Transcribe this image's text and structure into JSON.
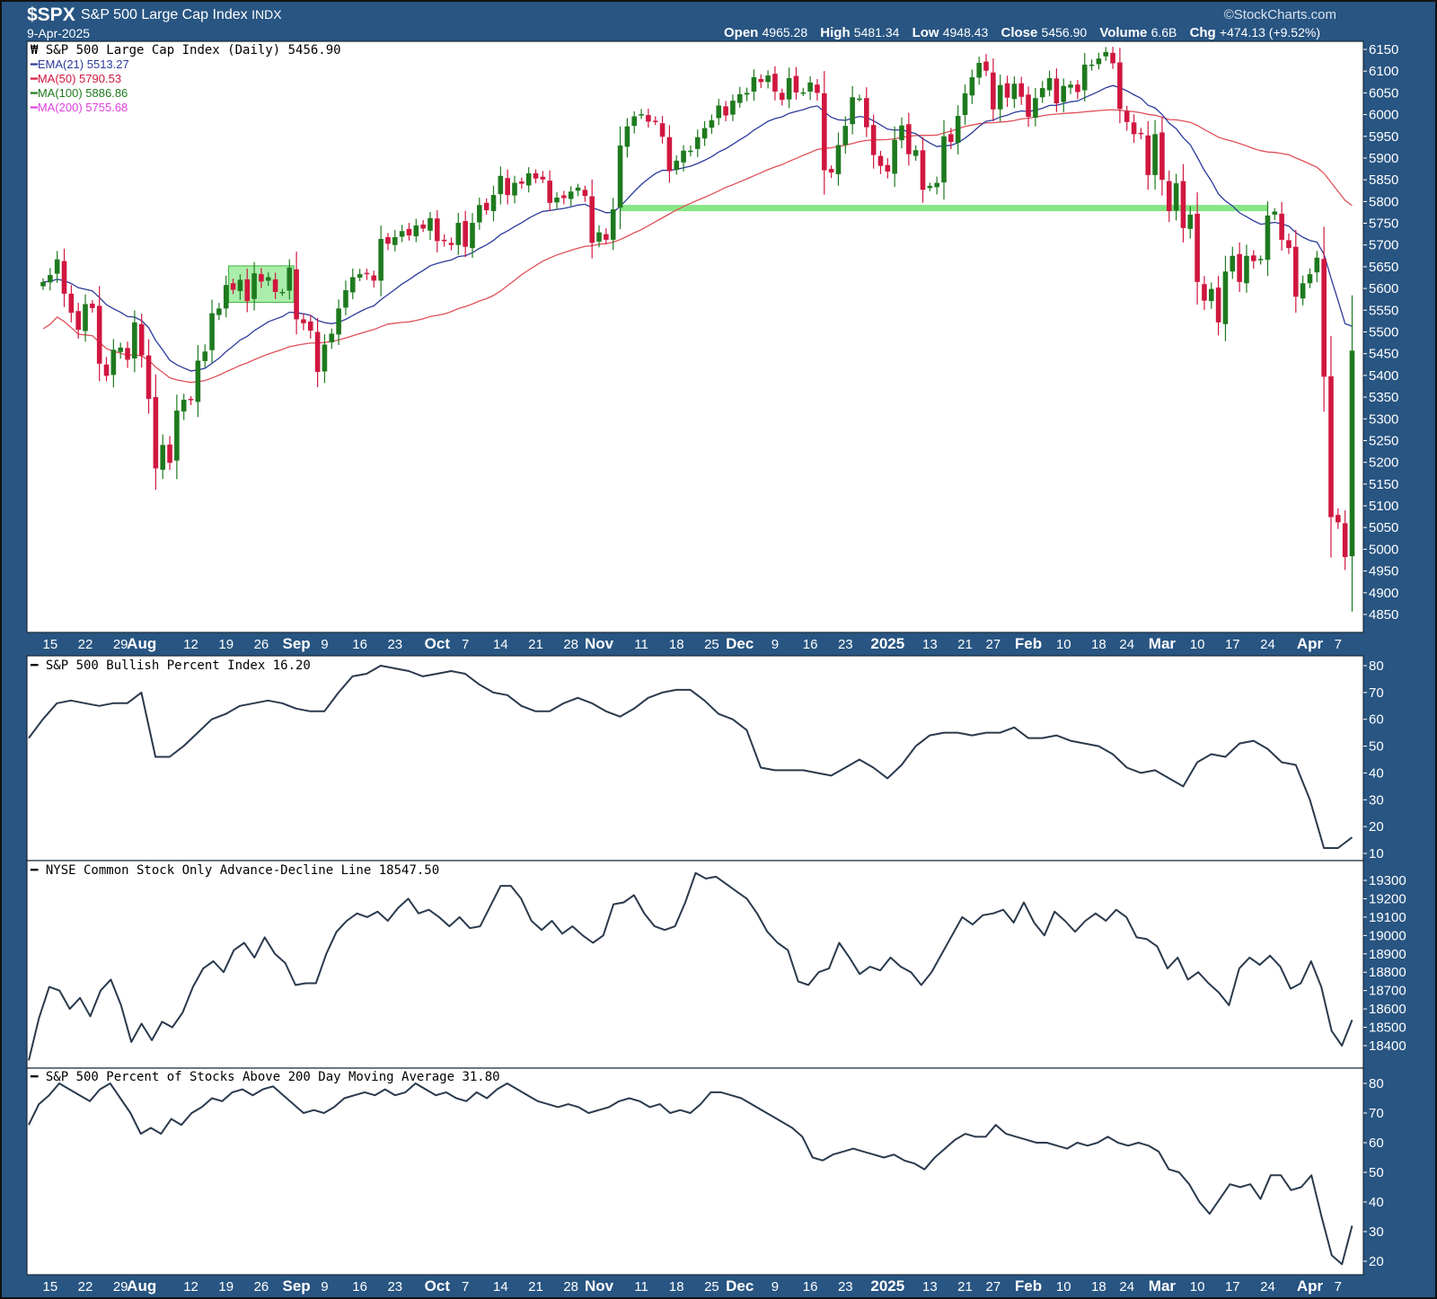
{
  "header": {
    "symbol": "$SPX",
    "name": "S&P 500 Large Cap Index",
    "exchange": "INDX",
    "date": "9-Apr-2025",
    "copyright": "©StockCharts.com",
    "open_label": "Open",
    "open": "4965.28",
    "high_label": "High",
    "high": "5481.34",
    "low_label": "Low",
    "low": "4948.43",
    "close_label": "Close",
    "close": "5456.90",
    "volume_label": "Volume",
    "volume": "6.6B",
    "chg_label": "Chg",
    "chg": "+474.13 (+9.52%)"
  },
  "legend": {
    "price": "S&P 500 Large Cap Index (Daily) 5456.90",
    "ema21": "EMA(21) 5513.27",
    "ma50": "MA(50) 5790.53",
    "ma100": "MA(100) 5886.86",
    "ma200": "MA(200) 5755.68"
  },
  "colors": {
    "up": "#1e7a1e",
    "down": "#d0173f",
    "ema21": "#2b3a9a",
    "ma50": "#e0505a",
    "ma100": "#1e7a1e",
    "ma200": "#e040e0",
    "highlight": "#66e066",
    "line": "#2a3a4c",
    "background": "#285582"
  },
  "chart_data": [
    {
      "type": "candlestick",
      "title": "S&P 500 Large Cap Index (Daily)",
      "ylim": [
        4820,
        6175
      ],
      "yticks": [
        6150,
        6100,
        6050,
        6000,
        5950,
        5900,
        5850,
        5800,
        5750,
        5700,
        5650,
        5600,
        5550,
        5500,
        5450,
        5400,
        5350,
        5300,
        5250,
        5200,
        5150,
        5100,
        5050,
        5000,
        4950,
        4900,
        4850
      ],
      "closes": [
        5615,
        5631,
        5667,
        5588,
        5544,
        5505,
        5564,
        5555,
        5427,
        5399,
        5459,
        5464,
        5436,
        5522,
        5446,
        5346,
        5186,
        5240,
        5199,
        5319,
        5344,
        5344,
        5434,
        5455,
        5543,
        5554,
        5608,
        5597,
        5620,
        5571,
        5635,
        5616,
        5626,
        5592,
        5592,
        5648,
        5529,
        5520,
        5503,
        5408,
        5471,
        5496,
        5554,
        5596,
        5626,
        5633,
        5634,
        5618,
        5714,
        5703,
        5718,
        5732,
        5722,
        5745,
        5738,
        5762,
        5709,
        5709,
        5700,
        5751,
        5696,
        5751,
        5792,
        5780,
        5815,
        5859,
        5815,
        5843,
        5841,
        5865,
        5853,
        5851,
        5797,
        5809,
        5808,
        5823,
        5832,
        5813,
        5705,
        5729,
        5712,
        5782,
        5929,
        5973,
        5996,
        6001,
        5984,
        5985,
        5949,
        5870,
        5894,
        5917,
        5917,
        5948,
        5969,
        5987,
        6021,
        5998,
        6032,
        6047,
        6050,
        6086,
        6075,
        6090,
        6053,
        6034,
        6084,
        6051,
        6051,
        6074,
        6050,
        5872,
        5867,
        5930,
        5974,
        6040,
        6037,
        5971,
        5907,
        5882,
        5869,
        5942,
        5975,
        5909,
        5918,
        5827,
        5836,
        5843,
        5950,
        5937,
        5997,
        6049,
        6086,
        6119,
        6101,
        6012,
        6068,
        6039,
        6071,
        6041,
        5995,
        6038,
        6061,
        6084,
        6026,
        6066,
        6069,
        6052,
        6115,
        6115,
        6129,
        6144,
        6118,
        6013,
        5983,
        5955,
        5956,
        5861,
        5955,
        5850,
        5778,
        5842,
        5739,
        5770,
        5615,
        5572,
        5599,
        5522,
        5639,
        5675,
        5615,
        5675,
        5663,
        5668,
        5768,
        5777,
        5712,
        5693,
        5581,
        5612,
        5633,
        5671,
        5397,
        5074,
        5062,
        4982,
        5457
      ],
      "highlight_box": {
        "from_index": 27,
        "to_index": 35,
        "low": 5568,
        "high": 5652
      },
      "support_line": {
        "from_index": 82,
        "to_index": 174,
        "value": 5785
      },
      "xticks": [
        {
          "i": 1,
          "label": "15"
        },
        {
          "i": 6,
          "label": "22"
        },
        {
          "i": 11,
          "label": "29"
        },
        {
          "i": 14,
          "label": "Aug",
          "major": true
        },
        {
          "i": 21,
          "label": "12"
        },
        {
          "i": 26,
          "label": "19"
        },
        {
          "i": 31,
          "label": "26"
        },
        {
          "i": 36,
          "label": "Sep",
          "major": true
        },
        {
          "i": 40,
          "label": "9"
        },
        {
          "i": 45,
          "label": "16"
        },
        {
          "i": 50,
          "label": "23"
        },
        {
          "i": 56,
          "label": "Oct",
          "major": true
        },
        {
          "i": 60,
          "label": "7"
        },
        {
          "i": 65,
          "label": "14"
        },
        {
          "i": 70,
          "label": "21"
        },
        {
          "i": 75,
          "label": "28"
        },
        {
          "i": 79,
          "label": "Nov",
          "major": true
        },
        {
          "i": 85,
          "label": "11"
        },
        {
          "i": 90,
          "label": "18"
        },
        {
          "i": 95,
          "label": "25"
        },
        {
          "i": 99,
          "label": "Dec",
          "major": true
        },
        {
          "i": 104,
          "label": "9"
        },
        {
          "i": 109,
          "label": "16"
        },
        {
          "i": 114,
          "label": "23"
        },
        {
          "i": 120,
          "label": "2025",
          "major": true
        },
        {
          "i": 126,
          "label": "13"
        },
        {
          "i": 131,
          "label": "21"
        },
        {
          "i": 135,
          "label": "27"
        },
        {
          "i": 140,
          "label": "Feb",
          "major": true
        },
        {
          "i": 145,
          "label": "10"
        },
        {
          "i": 150,
          "label": "18"
        },
        {
          "i": 154,
          "label": "24"
        },
        {
          "i": 159,
          "label": "Mar",
          "major": true
        },
        {
          "i": 164,
          "label": "10"
        },
        {
          "i": 169,
          "label": "17"
        },
        {
          "i": 174,
          "label": "24"
        },
        {
          "i": 180,
          "label": "Apr",
          "major": true
        },
        {
          "i": 184,
          "label": "7"
        }
      ]
    },
    {
      "type": "line",
      "title": "S&P 500 Bullish Percent Index 16.20",
      "ylim": [
        8,
        84
      ],
      "yticks": [
        80,
        70,
        60,
        50,
        40,
        30,
        20,
        10
      ],
      "values": [
        53,
        60,
        66,
        67,
        66,
        65,
        66,
        66,
        70,
        46,
        46,
        50,
        55,
        60,
        62,
        65,
        66,
        67,
        66,
        64,
        63,
        63,
        70,
        76,
        77,
        80,
        79,
        78,
        76,
        77,
        78,
        77,
        73,
        70,
        69,
        65,
        63,
        63,
        66,
        68,
        66,
        63,
        61,
        64,
        68,
        70,
        71,
        71,
        67,
        62,
        60,
        56,
        42,
        41,
        41,
        41,
        40,
        39,
        42,
        45,
        42,
        38,
        43,
        50,
        54,
        55,
        55,
        54,
        55,
        55,
        57,
        53,
        53,
        54,
        52,
        51,
        50,
        47,
        42,
        40,
        41,
        38,
        35,
        44,
        47,
        46,
        51,
        52,
        49,
        44,
        43,
        30,
        12,
        12,
        16
      ]
    },
    {
      "type": "line",
      "title": "NYSE Common Stock Only Advance-Decline Line 18547.50",
      "ylim": [
        18320,
        19380
      ],
      "yticks": [
        19300,
        19200,
        19100,
        19000,
        18900,
        18800,
        18700,
        18600,
        18500,
        18400
      ],
      "values": [
        18320,
        18550,
        18720,
        18700,
        18600,
        18660,
        18560,
        18700,
        18760,
        18620,
        18420,
        18520,
        18430,
        18530,
        18500,
        18580,
        18720,
        18820,
        18860,
        18800,
        18920,
        18960,
        18880,
        18990,
        18900,
        18850,
        18730,
        18740,
        18740,
        18900,
        19020,
        19080,
        19120,
        19100,
        19130,
        19080,
        19150,
        19200,
        19120,
        19140,
        19100,
        19050,
        19100,
        19040,
        19050,
        19160,
        19270,
        19270,
        19200,
        19080,
        19030,
        19080,
        19010,
        19050,
        19000,
        18960,
        19000,
        19170,
        19180,
        19220,
        19120,
        19050,
        19030,
        19050,
        19180,
        19340,
        19310,
        19320,
        19280,
        19240,
        19200,
        19120,
        19020,
        18960,
        18920,
        18750,
        18730,
        18800,
        18820,
        18960,
        18880,
        18790,
        18830,
        18810,
        18880,
        18830,
        18800,
        18730,
        18800,
        18900,
        19000,
        19100,
        19060,
        19110,
        19120,
        19140,
        19070,
        19180,
        19070,
        19000,
        19130,
        19080,
        19020,
        19080,
        19120,
        19080,
        19140,
        19100,
        18990,
        18980,
        18940,
        18820,
        18880,
        18760,
        18800,
        18740,
        18690,
        18620,
        18820,
        18880,
        18840,
        18890,
        18830,
        18710,
        18740,
        18860,
        18720,
        18480,
        18400,
        18540
      ]
    },
    {
      "type": "line",
      "title": "S&P 500 Percent of Stocks Above 200 Day Moving Average 31.80",
      "ylim": [
        17,
        84
      ],
      "yticks": [
        80,
        70,
        60,
        50,
        40,
        30,
        20
      ],
      "values": [
        66,
        73,
        76,
        80,
        78,
        76,
        74,
        78,
        80,
        75,
        70,
        63,
        65,
        63,
        68,
        66,
        70,
        72,
        75,
        74,
        77,
        78,
        76,
        78,
        79,
        76,
        73,
        70,
        71,
        70,
        72,
        75,
        76,
        77,
        76,
        78,
        76,
        77,
        80,
        78,
        76,
        77,
        75,
        74,
        77,
        75,
        78,
        80,
        78,
        76,
        74,
        73,
        72,
        73,
        72,
        70,
        71,
        72,
        74,
        75,
        74,
        72,
        73,
        70,
        71,
        70,
        73,
        77,
        77,
        76,
        75,
        73,
        71,
        69,
        67,
        65,
        62,
        55,
        54,
        56,
        57,
        58,
        57,
        56,
        55,
        56,
        54,
        53,
        51,
        55,
        58,
        61,
        63,
        62,
        62,
        66,
        63,
        62,
        61,
        60,
        60,
        59,
        58,
        60,
        59,
        60,
        62,
        60,
        59,
        60,
        59,
        57,
        51,
        50,
        46,
        40,
        36,
        41,
        46,
        45,
        46,
        41,
        49,
        49,
        44,
        45,
        49,
        35,
        22,
        19,
        32
      ]
    }
  ]
}
